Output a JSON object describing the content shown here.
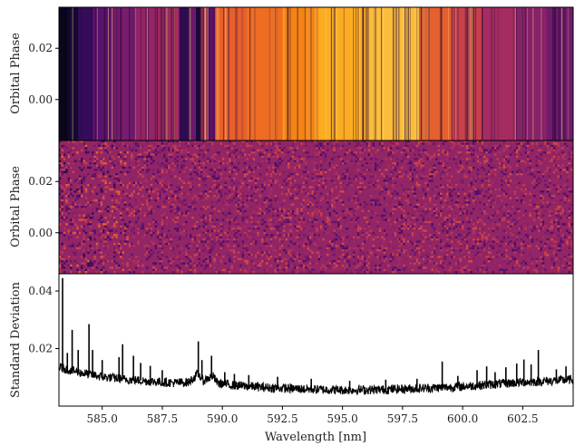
{
  "chart_data": [
    {
      "type": "heatmap",
      "panel": "top",
      "ylabel": "Orbital Phase",
      "yticks": [
        "0.00",
        "0.02"
      ],
      "ylim": [
        -0.016,
        0.036
      ],
      "xlim": [
        583.2,
        604.6
      ],
      "colormap": "inferno",
      "description_values": "stellar spectrum intensity vs wavelength; strong Na D absorption near 588.99 and 589.59 nm",
      "bands": [
        {
          "from": 583.2,
          "to": 583.6,
          "level": 0.05
        },
        {
          "from": 583.6,
          "to": 584.0,
          "level": 0.1
        },
        {
          "from": 584.0,
          "to": 584.6,
          "level": 0.2
        },
        {
          "from": 584.6,
          "to": 585.4,
          "level": 0.3
        },
        {
          "from": 585.4,
          "to": 586.4,
          "level": 0.38
        },
        {
          "from": 586.4,
          "to": 587.3,
          "level": 0.45
        },
        {
          "from": 587.3,
          "to": 588.2,
          "level": 0.5
        },
        {
          "from": 588.2,
          "to": 588.6,
          "level": 0.18
        },
        {
          "from": 588.6,
          "to": 588.9,
          "level": 0.35
        },
        {
          "from": 588.9,
          "to": 589.1,
          "level": 0.12
        },
        {
          "from": 589.1,
          "to": 589.4,
          "level": 0.55
        },
        {
          "from": 589.4,
          "to": 589.7,
          "level": 0.3
        },
        {
          "from": 589.7,
          "to": 591.0,
          "level": 0.72
        },
        {
          "from": 591.0,
          "to": 592.5,
          "level": 0.76
        },
        {
          "from": 592.5,
          "to": 594.0,
          "level": 0.82
        },
        {
          "from": 594.0,
          "to": 596.0,
          "level": 0.9
        },
        {
          "from": 596.0,
          "to": 598.2,
          "level": 0.92
        },
        {
          "from": 598.2,
          "to": 599.5,
          "level": 0.72
        },
        {
          "from": 599.5,
          "to": 600.8,
          "level": 0.6
        },
        {
          "from": 600.8,
          "to": 602.2,
          "level": 0.5
        },
        {
          "from": 602.2,
          "to": 603.5,
          "level": 0.42
        },
        {
          "from": 603.5,
          "to": 604.6,
          "level": 0.36
        }
      ]
    },
    {
      "type": "heatmap",
      "panel": "middle",
      "ylabel": "Orbital Phase",
      "yticks": [
        "0.00",
        "0.02"
      ],
      "ylim": [
        -0.016,
        0.036
      ],
      "xlim": [
        583.2,
        604.6
      ],
      "colormap": "inferno",
      "mean_level": 0.45
    },
    {
      "type": "line",
      "panel": "bottom",
      "ylabel": "Standard Deviation",
      "xlabel": "Wavelength [nm]",
      "xlim": [
        583.2,
        604.6
      ],
      "ylim": [
        0.0,
        0.046
      ],
      "xticks": [
        585.0,
        587.5,
        590.0,
        592.5,
        595.0,
        597.5,
        600.0,
        602.5
      ],
      "xtick_labels": [
        "585.0",
        "587.5",
        "590.0",
        "592.5",
        "595.0",
        "597.5",
        "600.0",
        "602.5"
      ],
      "yticks": [
        0.02,
        0.04
      ],
      "ytick_labels": [
        "0.02",
        "0.04"
      ],
      "baseline": [
        {
          "x": 583.2,
          "y": 0.0135
        },
        {
          "x": 584.0,
          "y": 0.0118
        },
        {
          "x": 585.0,
          "y": 0.0102
        },
        {
          "x": 586.0,
          "y": 0.0093
        },
        {
          "x": 587.0,
          "y": 0.0086
        },
        {
          "x": 588.0,
          "y": 0.0081
        },
        {
          "x": 588.6,
          "y": 0.0083
        },
        {
          "x": 588.8,
          "y": 0.0098
        },
        {
          "x": 589.0,
          "y": 0.0112
        },
        {
          "x": 589.2,
          "y": 0.0088
        },
        {
          "x": 589.6,
          "y": 0.0105
        },
        {
          "x": 589.8,
          "y": 0.008
        },
        {
          "x": 590.5,
          "y": 0.0072
        },
        {
          "x": 592.0,
          "y": 0.0064
        },
        {
          "x": 593.5,
          "y": 0.0059
        },
        {
          "x": 595.0,
          "y": 0.0056
        },
        {
          "x": 596.5,
          "y": 0.0057
        },
        {
          "x": 598.0,
          "y": 0.0061
        },
        {
          "x": 599.5,
          "y": 0.0066
        },
        {
          "x": 600.5,
          "y": 0.0071
        },
        {
          "x": 601.5,
          "y": 0.0077
        },
        {
          "x": 602.5,
          "y": 0.0083
        },
        {
          "x": 603.5,
          "y": 0.0087
        },
        {
          "x": 604.6,
          "y": 0.0092
        }
      ],
      "spikes": [
        {
          "x": 583.35,
          "y": 0.0445
        },
        {
          "x": 583.55,
          "y": 0.0185
        },
        {
          "x": 583.75,
          "y": 0.0265
        },
        {
          "x": 584.0,
          "y": 0.0195
        },
        {
          "x": 584.45,
          "y": 0.0285
        },
        {
          "x": 584.6,
          "y": 0.0195
        },
        {
          "x": 585.0,
          "y": 0.016
        },
        {
          "x": 585.7,
          "y": 0.017
        },
        {
          "x": 585.85,
          "y": 0.0215
        },
        {
          "x": 586.3,
          "y": 0.0175
        },
        {
          "x": 586.6,
          "y": 0.015
        },
        {
          "x": 587.0,
          "y": 0.014
        },
        {
          "x": 587.5,
          "y": 0.0125
        },
        {
          "x": 589.0,
          "y": 0.0225
        },
        {
          "x": 589.15,
          "y": 0.016
        },
        {
          "x": 589.55,
          "y": 0.0175
        },
        {
          "x": 590.1,
          "y": 0.0118
        },
        {
          "x": 590.5,
          "y": 0.0112
        },
        {
          "x": 591.1,
          "y": 0.0108
        },
        {
          "x": 592.3,
          "y": 0.0102
        },
        {
          "x": 593.7,
          "y": 0.0095
        },
        {
          "x": 595.3,
          "y": 0.0088
        },
        {
          "x": 596.8,
          "y": 0.0092
        },
        {
          "x": 598.1,
          "y": 0.0095
        },
        {
          "x": 599.15,
          "y": 0.0155
        },
        {
          "x": 599.8,
          "y": 0.0105
        },
        {
          "x": 600.6,
          "y": 0.0125
        },
        {
          "x": 601.0,
          "y": 0.0138
        },
        {
          "x": 601.35,
          "y": 0.0118
        },
        {
          "x": 601.8,
          "y": 0.0135
        },
        {
          "x": 602.25,
          "y": 0.0148
        },
        {
          "x": 602.55,
          "y": 0.0162
        },
        {
          "x": 602.85,
          "y": 0.0145
        },
        {
          "x": 603.15,
          "y": 0.0195
        },
        {
          "x": 603.9,
          "y": 0.0128
        },
        {
          "x": 604.3,
          "y": 0.0138
        }
      ]
    }
  ]
}
